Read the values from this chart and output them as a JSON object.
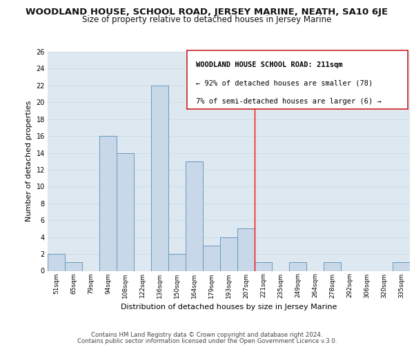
{
  "title": "WOODLAND HOUSE, SCHOOL ROAD, JERSEY MARINE, NEATH, SA10 6JE",
  "subtitle": "Size of property relative to detached houses in Jersey Marine",
  "xlabel": "Distribution of detached houses by size in Jersey Marine",
  "ylabel": "Number of detached properties",
  "footer_line1": "Contains HM Land Registry data © Crown copyright and database right 2024.",
  "footer_line2": "Contains public sector information licensed under the Open Government Licence v.3.0.",
  "bin_labels": [
    "51sqm",
    "65sqm",
    "79sqm",
    "94sqm",
    "108sqm",
    "122sqm",
    "136sqm",
    "150sqm",
    "164sqm",
    "179sqm",
    "193sqm",
    "207sqm",
    "221sqm",
    "235sqm",
    "249sqm",
    "264sqm",
    "278sqm",
    "292sqm",
    "306sqm",
    "320sqm",
    "335sqm"
  ],
  "bar_heights": [
    2,
    1,
    0,
    16,
    14,
    0,
    22,
    2,
    13,
    3,
    4,
    5,
    1,
    0,
    1,
    0,
    1,
    0,
    0,
    0,
    1
  ],
  "bar_color": "#c8d8e8",
  "bar_edge_color": "#6699bb",
  "red_line_x": 11.5,
  "ylim": [
    0,
    26
  ],
  "yticks": [
    0,
    2,
    4,
    6,
    8,
    10,
    12,
    14,
    16,
    18,
    20,
    22,
    24,
    26
  ],
  "annotation_title": "WOODLAND HOUSE SCHOOL ROAD: 211sqm",
  "annotation_line1": "← 92% of detached houses are smaller (78)",
  "annotation_line2": "7% of semi-detached houses are larger (6) →",
  "grid_color": "#ccdde8",
  "background_color": "#dde8f0",
  "fig_background": "#ffffff",
  "annotation_border_color": "#cc2222"
}
